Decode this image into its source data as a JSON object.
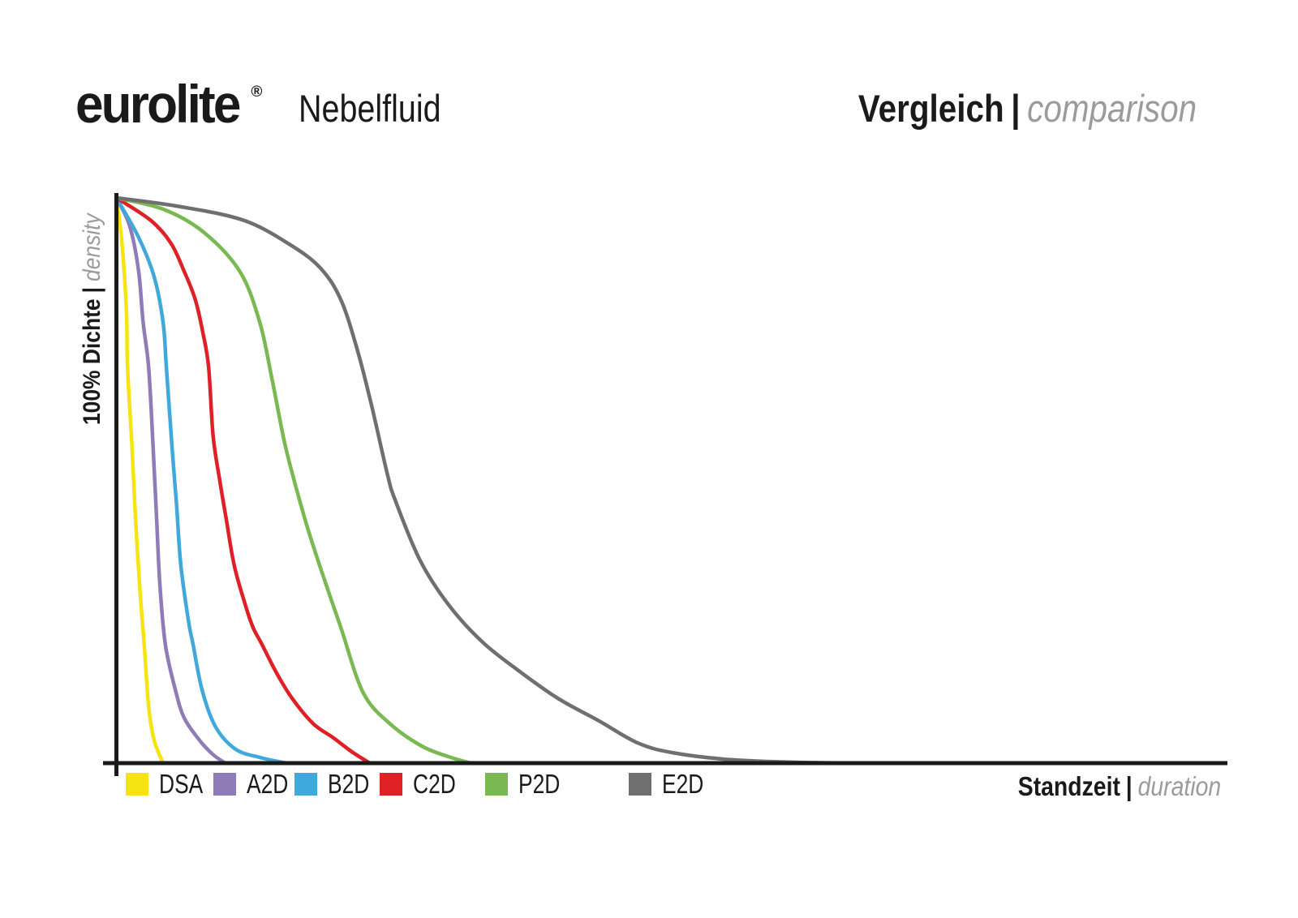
{
  "header": {
    "brand": "eurolite",
    "registered": "®",
    "product": "Nebelfluid",
    "title_de": "Vergleich",
    "separator": "|",
    "title_en": "comparison"
  },
  "chart_data": {
    "type": "line",
    "title": "Vergleich | comparison",
    "xlabel_de": "Standzeit",
    "xlabel_en": "duration",
    "ylabel_de": "100% Dichte",
    "ylabel_en": "density",
    "separator": "|",
    "x_axis": {
      "label": "Standzeit | duration",
      "min": 0,
      "max": 100,
      "ticks": "none",
      "unit": "relative duration"
    },
    "y_axis": {
      "label": "100% Dichte | density",
      "min": 0,
      "max": 100,
      "ticks": "none",
      "unit": "% density"
    },
    "grid": false,
    "legend_position": "bottom",
    "axis_color": "#1a1a1a",
    "series": [
      {
        "name": "DSA",
        "color": "#F7E311",
        "points": [
          [
            0,
            100
          ],
          [
            0.5,
            92
          ],
          [
            0.9,
            80
          ],
          [
            1.0,
            70
          ],
          [
            1.4,
            56
          ],
          [
            1.7,
            44
          ],
          [
            2.1,
            31
          ],
          [
            2.5,
            21
          ],
          [
            2.9,
            10
          ],
          [
            3.4,
            4
          ],
          [
            4.2,
            0
          ]
        ]
      },
      {
        "name": "A2D",
        "color": "#8E7BB8",
        "points": [
          [
            0,
            100
          ],
          [
            1.2,
            95
          ],
          [
            2.0,
            87
          ],
          [
            2.4,
            78
          ],
          [
            2.9,
            70
          ],
          [
            3.3,
            56
          ],
          [
            3.6,
            44
          ],
          [
            3.9,
            32
          ],
          [
            4.4,
            21
          ],
          [
            5.3,
            13
          ],
          [
            6.1,
            8
          ],
          [
            7.5,
            4
          ],
          [
            8.7,
            1.5
          ],
          [
            9.8,
            0
          ]
        ]
      },
      {
        "name": "B2D",
        "color": "#3FA9DC",
        "points": [
          [
            0,
            100
          ],
          [
            2.0,
            93
          ],
          [
            3.4,
            86
          ],
          [
            4.2,
            78
          ],
          [
            4.5,
            70
          ],
          [
            5.0,
            56
          ],
          [
            5.4,
            46
          ],
          [
            5.8,
            35
          ],
          [
            6.5,
            25
          ],
          [
            6.9,
            21
          ],
          [
            7.7,
            13
          ],
          [
            8.9,
            6.5
          ],
          [
            10.7,
            2.5
          ],
          [
            12.9,
            1
          ],
          [
            15.3,
            0
          ]
        ]
      },
      {
        "name": "C2D",
        "color": "#DF2127",
        "points": [
          [
            0,
            100
          ],
          [
            3.1,
            96
          ],
          [
            4.9,
            92
          ],
          [
            6.1,
            87
          ],
          [
            7.1,
            82
          ],
          [
            7.8,
            76
          ],
          [
            8.3,
            70
          ],
          [
            8.7,
            58
          ],
          [
            9.3,
            50
          ],
          [
            9.9,
            43
          ],
          [
            10.6,
            35
          ],
          [
            11.6,
            28
          ],
          [
            12.3,
            24
          ],
          [
            13.1,
            21
          ],
          [
            14.4,
            16
          ],
          [
            15.8,
            11.5
          ],
          [
            17.7,
            7
          ],
          [
            19.5,
            4.5
          ],
          [
            21.2,
            2
          ],
          [
            22.8,
            0
          ]
        ]
      },
      {
        "name": "P2D",
        "color": "#7AB851",
        "points": [
          [
            0,
            100
          ],
          [
            4.2,
            98
          ],
          [
            7.8,
            94
          ],
          [
            11.1,
            87
          ],
          [
            12.9,
            78
          ],
          [
            14.0,
            68
          ],
          [
            15.1,
            57
          ],
          [
            16.0,
            50
          ],
          [
            17.3,
            41
          ],
          [
            18.8,
            32
          ],
          [
            20.2,
            24
          ],
          [
            22.2,
            12.5
          ],
          [
            24.6,
            7
          ],
          [
            27.5,
            3
          ],
          [
            30.1,
            1
          ],
          [
            31.9,
            0
          ]
        ]
      },
      {
        "name": "E2D",
        "color": "#6F6F6F",
        "points": [
          [
            0,
            100
          ],
          [
            5.6,
            98.5
          ],
          [
            11.5,
            96
          ],
          [
            15.8,
            91.5
          ],
          [
            18.4,
            87.5
          ],
          [
            20.2,
            82
          ],
          [
            21.7,
            73
          ],
          [
            23.0,
            63
          ],
          [
            24.4,
            51
          ],
          [
            25.1,
            46.5
          ],
          [
            27.3,
            36
          ],
          [
            29.9,
            28
          ],
          [
            32.9,
            21.5
          ],
          [
            36.1,
            16.5
          ],
          [
            39.7,
            11.5
          ],
          [
            43.4,
            7.5
          ],
          [
            47.0,
            3.5
          ],
          [
            50.2,
            1.8
          ],
          [
            55.3,
            0.6
          ],
          [
            62,
            0.1
          ],
          [
            70,
            0
          ]
        ]
      }
    ]
  }
}
